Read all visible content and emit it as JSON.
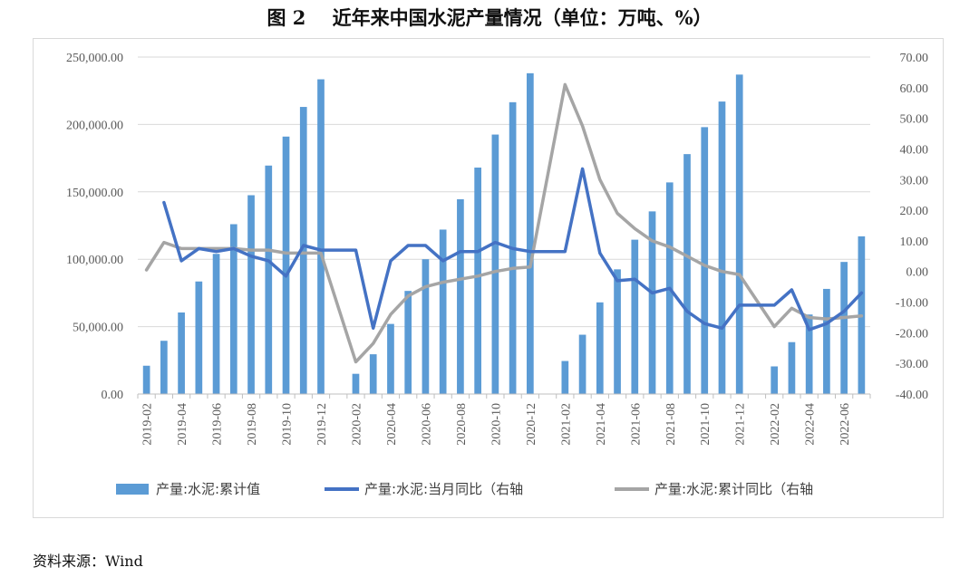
{
  "title": "图 2    近年来中国水泥产量情况（单位：万吨、%）",
  "source": "资料来源：Wind",
  "colors": {
    "bars": "#5b9bd5",
    "monthly_line": "#4472c4",
    "cumulative_line": "#a5a5a5"
  },
  "chart_data": {
    "type": "bar",
    "title": "图 2    近年来中国水泥产量情况（单位：万吨、%）",
    "x_tick_labels": [
      "2019-02",
      "2019-04",
      "2019-06",
      "2019-08",
      "2019-10",
      "2019-12",
      "2020-02",
      "2020-04",
      "2020-06",
      "2020-08",
      "2020-10",
      "2020-12",
      "2021-02",
      "2021-04",
      "2021-06",
      "2021-08",
      "2021-10",
      "2021-12",
      "2022-02",
      "2022-04",
      "2022-06"
    ],
    "y_left": {
      "ylim": [
        0,
        250000
      ],
      "ticks": [
        "0.00",
        "50,000.00",
        "100,000.00",
        "150,000.00",
        "200,000.00",
        "250,000.00"
      ]
    },
    "y_right": {
      "ylim": [
        -40,
        70
      ],
      "ticks": [
        "-40.00",
        "-30.00",
        "-20.00",
        "-10.00",
        "0.00",
        "10.00",
        "20.00",
        "30.00",
        "40.00",
        "50.00",
        "60.00",
        "70.00"
      ]
    },
    "grid": true,
    "legend_position": "bottom",
    "categories": [
      "2019-02",
      "2019-03",
      "2019-04",
      "2019-05",
      "2019-06",
      "2019-07",
      "2019-08",
      "2019-09",
      "2019-10",
      "2019-11",
      "2019-12",
      "2020-01",
      "2020-02",
      "2020-03",
      "2020-04",
      "2020-05",
      "2020-06",
      "2020-07",
      "2020-08",
      "2020-09",
      "2020-10",
      "2020-11",
      "2020-12",
      "2021-01",
      "2021-02",
      "2021-03",
      "2021-04",
      "2021-05",
      "2021-06",
      "2021-07",
      "2021-08",
      "2021-09",
      "2021-10",
      "2021-11",
      "2021-12",
      "2022-01",
      "2022-02",
      "2022-03",
      "2022-04",
      "2022-05",
      "2022-06",
      "2022-07"
    ],
    "series": [
      {
        "name": "产量:水泥:累计值",
        "type": "bar",
        "axis": "left",
        "values": [
          21000,
          39500,
          60500,
          83500,
          104000,
          126000,
          147500,
          169500,
          191000,
          213000,
          233500,
          null,
          15000,
          29500,
          52000,
          76500,
          100000,
          122000,
          144500,
          168000,
          192500,
          216500,
          238000,
          null,
          24500,
          44000,
          68000,
          92500,
          114500,
          135500,
          157000,
          178000,
          198000,
          217000,
          237000,
          null,
          20500,
          38500,
          59000,
          78000,
          98000,
          117000
        ]
      },
      {
        "name": "产量:水泥:当月同比（右轴",
        "type": "line",
        "axis": "right",
        "values": [
          null,
          22.5,
          3.5,
          7.5,
          6.5,
          7.5,
          5,
          3.5,
          -1.5,
          8.5,
          7,
          7,
          7,
          -18.5,
          3.5,
          8.5,
          8.5,
          3.5,
          6.5,
          6.5,
          9.5,
          7.5,
          6.5,
          6.5,
          6.5,
          33.5,
          6,
          -3,
          -2.5,
          -7,
          -5.5,
          -13,
          -17,
          -18.5,
          -11,
          -11,
          -11,
          -6,
          -19,
          -17,
          -13,
          -7
        ]
      },
      {
        "name": "产量:水泥:累计同比（右轴",
        "type": "line",
        "axis": "right",
        "values": [
          0.5,
          9.5,
          7.5,
          7.5,
          7.5,
          7.5,
          7,
          7,
          6,
          6,
          6,
          null,
          -29.5,
          -23.5,
          -14,
          -8,
          -5,
          -3.5,
          -2.5,
          -1.5,
          0,
          1,
          1.5,
          null,
          61,
          47.5,
          30,
          19,
          14,
          10,
          8,
          5,
          2,
          0,
          -1,
          null,
          -18,
          -12,
          -15,
          -15.5,
          -15,
          -14.5
        ]
      }
    ]
  }
}
